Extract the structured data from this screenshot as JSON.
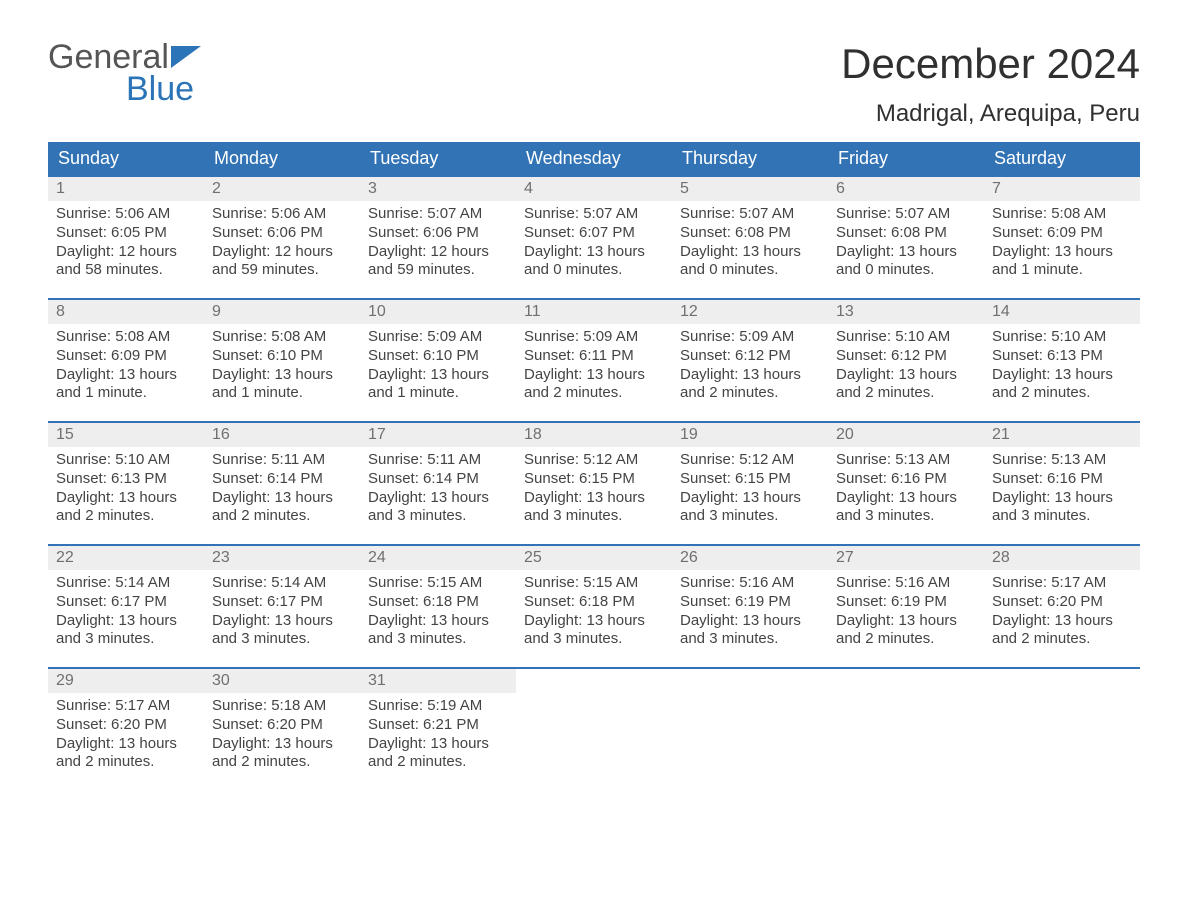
{
  "logo": {
    "word1": "General",
    "word2": "Blue"
  },
  "colors": {
    "accent": "#3173b5",
    "header_text": "#ffffff",
    "daynum_bg": "#eeeeee",
    "daynum_text": "#707070",
    "body_text": "#444444",
    "title_text": "#303030",
    "logo_gray": "#555555",
    "logo_blue": "#2b74b8",
    "row_border": "#3173b5",
    "background": "#ffffff"
  },
  "title": "December 2024",
  "location": "Madrigal, Arequipa, Peru",
  "day_headers": [
    "Sunday",
    "Monday",
    "Tuesday",
    "Wednesday",
    "Thursday",
    "Friday",
    "Saturday"
  ],
  "weeks": [
    [
      {
        "n": "1",
        "sr": "Sunrise: 5:06 AM",
        "ss": "Sunset: 6:05 PM",
        "d1": "Daylight: 12 hours",
        "d2": "and 58 minutes."
      },
      {
        "n": "2",
        "sr": "Sunrise: 5:06 AM",
        "ss": "Sunset: 6:06 PM",
        "d1": "Daylight: 12 hours",
        "d2": "and 59 minutes."
      },
      {
        "n": "3",
        "sr": "Sunrise: 5:07 AM",
        "ss": "Sunset: 6:06 PM",
        "d1": "Daylight: 12 hours",
        "d2": "and 59 minutes."
      },
      {
        "n": "4",
        "sr": "Sunrise: 5:07 AM",
        "ss": "Sunset: 6:07 PM",
        "d1": "Daylight: 13 hours",
        "d2": "and 0 minutes."
      },
      {
        "n": "5",
        "sr": "Sunrise: 5:07 AM",
        "ss": "Sunset: 6:08 PM",
        "d1": "Daylight: 13 hours",
        "d2": "and 0 minutes."
      },
      {
        "n": "6",
        "sr": "Sunrise: 5:07 AM",
        "ss": "Sunset: 6:08 PM",
        "d1": "Daylight: 13 hours",
        "d2": "and 0 minutes."
      },
      {
        "n": "7",
        "sr": "Sunrise: 5:08 AM",
        "ss": "Sunset: 6:09 PM",
        "d1": "Daylight: 13 hours",
        "d2": "and 1 minute."
      }
    ],
    [
      {
        "n": "8",
        "sr": "Sunrise: 5:08 AM",
        "ss": "Sunset: 6:09 PM",
        "d1": "Daylight: 13 hours",
        "d2": "and 1 minute."
      },
      {
        "n": "9",
        "sr": "Sunrise: 5:08 AM",
        "ss": "Sunset: 6:10 PM",
        "d1": "Daylight: 13 hours",
        "d2": "and 1 minute."
      },
      {
        "n": "10",
        "sr": "Sunrise: 5:09 AM",
        "ss": "Sunset: 6:10 PM",
        "d1": "Daylight: 13 hours",
        "d2": "and 1 minute."
      },
      {
        "n": "11",
        "sr": "Sunrise: 5:09 AM",
        "ss": "Sunset: 6:11 PM",
        "d1": "Daylight: 13 hours",
        "d2": "and 2 minutes."
      },
      {
        "n": "12",
        "sr": "Sunrise: 5:09 AM",
        "ss": "Sunset: 6:12 PM",
        "d1": "Daylight: 13 hours",
        "d2": "and 2 minutes."
      },
      {
        "n": "13",
        "sr": "Sunrise: 5:10 AM",
        "ss": "Sunset: 6:12 PM",
        "d1": "Daylight: 13 hours",
        "d2": "and 2 minutes."
      },
      {
        "n": "14",
        "sr": "Sunrise: 5:10 AM",
        "ss": "Sunset: 6:13 PM",
        "d1": "Daylight: 13 hours",
        "d2": "and 2 minutes."
      }
    ],
    [
      {
        "n": "15",
        "sr": "Sunrise: 5:10 AM",
        "ss": "Sunset: 6:13 PM",
        "d1": "Daylight: 13 hours",
        "d2": "and 2 minutes."
      },
      {
        "n": "16",
        "sr": "Sunrise: 5:11 AM",
        "ss": "Sunset: 6:14 PM",
        "d1": "Daylight: 13 hours",
        "d2": "and 2 minutes."
      },
      {
        "n": "17",
        "sr": "Sunrise: 5:11 AM",
        "ss": "Sunset: 6:14 PM",
        "d1": "Daylight: 13 hours",
        "d2": "and 3 minutes."
      },
      {
        "n": "18",
        "sr": "Sunrise: 5:12 AM",
        "ss": "Sunset: 6:15 PM",
        "d1": "Daylight: 13 hours",
        "d2": "and 3 minutes."
      },
      {
        "n": "19",
        "sr": "Sunrise: 5:12 AM",
        "ss": "Sunset: 6:15 PM",
        "d1": "Daylight: 13 hours",
        "d2": "and 3 minutes."
      },
      {
        "n": "20",
        "sr": "Sunrise: 5:13 AM",
        "ss": "Sunset: 6:16 PM",
        "d1": "Daylight: 13 hours",
        "d2": "and 3 minutes."
      },
      {
        "n": "21",
        "sr": "Sunrise: 5:13 AM",
        "ss": "Sunset: 6:16 PM",
        "d1": "Daylight: 13 hours",
        "d2": "and 3 minutes."
      }
    ],
    [
      {
        "n": "22",
        "sr": "Sunrise: 5:14 AM",
        "ss": "Sunset: 6:17 PM",
        "d1": "Daylight: 13 hours",
        "d2": "and 3 minutes."
      },
      {
        "n": "23",
        "sr": "Sunrise: 5:14 AM",
        "ss": "Sunset: 6:17 PM",
        "d1": "Daylight: 13 hours",
        "d2": "and 3 minutes."
      },
      {
        "n": "24",
        "sr": "Sunrise: 5:15 AM",
        "ss": "Sunset: 6:18 PM",
        "d1": "Daylight: 13 hours",
        "d2": "and 3 minutes."
      },
      {
        "n": "25",
        "sr": "Sunrise: 5:15 AM",
        "ss": "Sunset: 6:18 PM",
        "d1": "Daylight: 13 hours",
        "d2": "and 3 minutes."
      },
      {
        "n": "26",
        "sr": "Sunrise: 5:16 AM",
        "ss": "Sunset: 6:19 PM",
        "d1": "Daylight: 13 hours",
        "d2": "and 3 minutes."
      },
      {
        "n": "27",
        "sr": "Sunrise: 5:16 AM",
        "ss": "Sunset: 6:19 PM",
        "d1": "Daylight: 13 hours",
        "d2": "and 2 minutes."
      },
      {
        "n": "28",
        "sr": "Sunrise: 5:17 AM",
        "ss": "Sunset: 6:20 PM",
        "d1": "Daylight: 13 hours",
        "d2": "and 2 minutes."
      }
    ],
    [
      {
        "n": "29",
        "sr": "Sunrise: 5:17 AM",
        "ss": "Sunset: 6:20 PM",
        "d1": "Daylight: 13 hours",
        "d2": "and 2 minutes."
      },
      {
        "n": "30",
        "sr": "Sunrise: 5:18 AM",
        "ss": "Sunset: 6:20 PM",
        "d1": "Daylight: 13 hours",
        "d2": "and 2 minutes."
      },
      {
        "n": "31",
        "sr": "Sunrise: 5:19 AM",
        "ss": "Sunset: 6:21 PM",
        "d1": "Daylight: 13 hours",
        "d2": "and 2 minutes."
      },
      null,
      null,
      null,
      null
    ]
  ]
}
